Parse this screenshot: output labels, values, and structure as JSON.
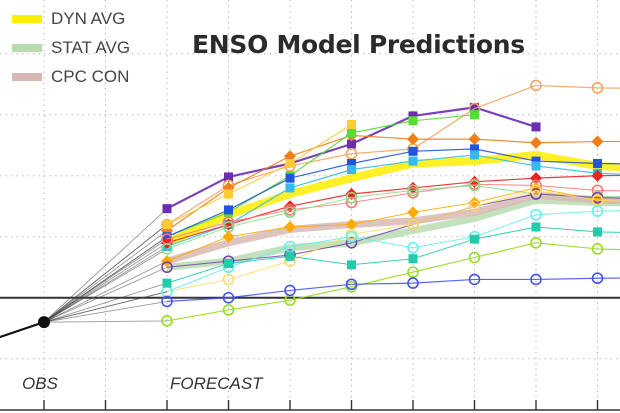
{
  "chart_data": {
    "type": "line",
    "title": "ENSO Model Predictions",
    "xlabel": "",
    "ylabel": "",
    "x_labels": [
      {
        "label": "OBS",
        "index": 0
      },
      {
        "label": "FORECAST",
        "index": 2
      }
    ],
    "x_tick_count": 10,
    "ylim": [
      -0.92,
      2.44
    ],
    "y_gridlines": [
      -0.5,
      0.5,
      1.0,
      1.5,
      2.0
    ],
    "zero_line": 0,
    "grid": true,
    "legend": "top-left",
    "observed": {
      "x": [
        -1,
        0
      ],
      "values": [
        -0.37,
        -0.2
      ],
      "color": "#111111"
    },
    "forecast_x": [
      2,
      3,
      4,
      5,
      6,
      7,
      8,
      9
    ],
    "series": [
      {
        "marker": "square",
        "color": "#6a2db0",
        "width": 2.2,
        "values": [
          0.73,
          0.99,
          1.1,
          1.26,
          1.49,
          1.56,
          1.4,
          null
        ]
      },
      {
        "marker": "open-circle",
        "color": "#f4a460",
        "width": 1.2,
        "values": [
          0.6,
          0.92,
          1.08,
          1.18,
          1.22,
          1.55,
          1.74,
          1.72
        ]
      },
      {
        "marker": "diamond",
        "color": "#f07f1a",
        "width": 1.2,
        "values": [
          0.55,
          0.9,
          1.16,
          1.33,
          1.3,
          1.3,
          1.27,
          1.28
        ]
      },
      {
        "marker": "square",
        "color": "#55dd33",
        "width": 1.2,
        "values": [
          0.5,
          0.7,
          1.0,
          1.35,
          1.45,
          1.5,
          null,
          null
        ]
      },
      {
        "marker": "square",
        "color": "#ffcc33",
        "width": 1.2,
        "values": [
          0.6,
          0.85,
          1.1,
          1.42,
          null,
          null,
          null,
          null
        ]
      },
      {
        "marker": "square",
        "color": "#2255dd",
        "width": 1.2,
        "values": [
          0.5,
          0.72,
          0.98,
          1.1,
          1.2,
          1.22,
          1.12,
          1.1
        ]
      },
      {
        "marker": "square",
        "color": "#33bbee",
        "width": 1.2,
        "values": [
          0.42,
          0.6,
          0.9,
          1.05,
          1.12,
          1.17,
          1.08,
          1.02
        ]
      },
      {
        "marker": "diamond",
        "color": "#ee2222",
        "width": 1.2,
        "values": [
          0.45,
          0.6,
          0.75,
          0.85,
          0.9,
          0.95,
          0.98,
          1.0
        ]
      },
      {
        "marker": "open-circle",
        "color": "#ff7777",
        "width": 1.0,
        "values": [
          0.48,
          0.62,
          0.72,
          0.78,
          0.86,
          0.93,
          0.92,
          0.88
        ]
      },
      {
        "marker": "open-circle",
        "color": "#88dd88",
        "width": 1.0,
        "values": [
          0.4,
          0.58,
          0.7,
          0.82,
          0.88,
          0.92,
          0.85,
          0.83
        ]
      },
      {
        "marker": "diamond",
        "color": "#ffaa00",
        "width": 1.0,
        "values": [
          0.3,
          0.5,
          0.58,
          0.6,
          0.7,
          0.78,
          0.9,
          0.8
        ]
      },
      {
        "marker": "open-circle",
        "color": "#7744aa",
        "width": 1.0,
        "values": [
          0.25,
          0.3,
          0.35,
          0.45,
          0.6,
          0.75,
          0.85,
          0.82
        ]
      },
      {
        "marker": "open-circle",
        "color": "#ffdd66",
        "width": 1.0,
        "values": [
          0.05,
          0.15,
          0.3,
          0.52,
          0.6,
          0.75,
          0.88,
          0.8
        ]
      },
      {
        "marker": "open-circle",
        "color": "#66eeee",
        "width": 1.0,
        "values": [
          0.05,
          0.25,
          0.42,
          0.5,
          0.41,
          0.5,
          0.68,
          0.71
        ]
      },
      {
        "marker": "square",
        "color": "#22ccaa",
        "width": 1.0,
        "values": [
          0.12,
          0.28,
          0.34,
          0.27,
          0.32,
          0.48,
          0.58,
          0.54
        ]
      },
      {
        "marker": "open-circle",
        "color": "#99dd22",
        "width": 1.2,
        "values": [
          -0.19,
          -0.1,
          -0.02,
          0.09,
          0.21,
          0.33,
          0.45,
          0.4
        ]
      },
      {
        "marker": "open-circle",
        "color": "#4455ee",
        "width": 1.2,
        "values": [
          -0.03,
          0.0,
          0.06,
          0.11,
          0.12,
          0.15,
          0.15,
          0.16
        ]
      },
      {
        "name": "STAT AVG",
        "marker": "none",
        "color": "#b8dcb0",
        "width": 7,
        "values": [
          0.25,
          0.3,
          0.41,
          0.45,
          0.55,
          0.65,
          0.8,
          0.78
        ]
      },
      {
        "name": "CPC CON",
        "marker": "none",
        "color": "#d8b8b4",
        "width": 7,
        "values": [
          0.3,
          0.45,
          0.56,
          0.6,
          0.63,
          0.7,
          0.84,
          0.8
        ]
      },
      {
        "name": "DYN AVG",
        "marker": "none",
        "color": "#ffee00",
        "width": 8,
        "values": [
          0.45,
          0.68,
          0.85,
          0.98,
          1.1,
          1.12,
          1.17,
          1.08
        ]
      }
    ],
    "legend_entries": [
      {
        "label": "DYN AVG",
        "color": "#ffee00"
      },
      {
        "label": "STAT AVG",
        "color": "#b8dcb0"
      },
      {
        "label": "CPC CON",
        "color": "#d8b8b4"
      }
    ]
  }
}
